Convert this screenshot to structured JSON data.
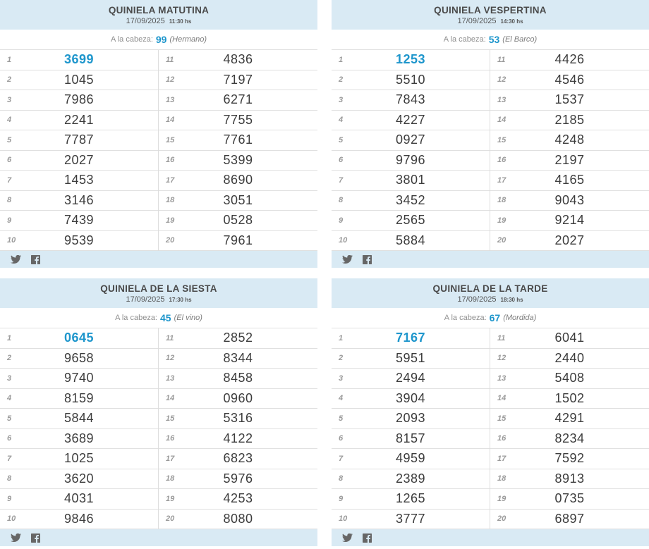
{
  "page": {
    "background": "#ffffff"
  },
  "colors": {
    "accent": "#1e96cc",
    "panel_header_bg": "#d9eaf4",
    "row_border": "#e0e0e0",
    "value_text": "#3c3c3c",
    "muted_text": "#8f8f8f",
    "icon_gray": "#666666"
  },
  "positions": [
    "1",
    "2",
    "3",
    "4",
    "5",
    "6",
    "7",
    "8",
    "9",
    "10",
    "11",
    "12",
    "13",
    "14",
    "15",
    "16",
    "17",
    "18",
    "19",
    "20"
  ],
  "panels": [
    {
      "title": "QUINIELA MATUTINA",
      "date": "17/09/2025",
      "time": "11:30 hs",
      "cabeza_label": "A la cabeza:",
      "cabeza_number": "99",
      "cabeza_name": "(Hermano)",
      "values": [
        "3699",
        "1045",
        "7986",
        "2241",
        "7787",
        "2027",
        "1453",
        "3146",
        "7439",
        "9539",
        "4836",
        "7197",
        "6271",
        "7755",
        "7761",
        "5399",
        "8690",
        "3051",
        "0528",
        "7961"
      ]
    },
    {
      "title": "QUINIELA VESPERTINA",
      "date": "17/09/2025",
      "time": "14:30 hs",
      "cabeza_label": "A la cabeza:",
      "cabeza_number": "53",
      "cabeza_name": "(El Barco)",
      "values": [
        "1253",
        "5510",
        "7843",
        "4227",
        "0927",
        "9796",
        "3801",
        "3452",
        "2565",
        "5884",
        "4426",
        "4546",
        "1537",
        "2185",
        "4248",
        "2197",
        "4165",
        "9043",
        "9214",
        "2027"
      ]
    },
    {
      "title": "QUINIELA DE LA SIESTA",
      "date": "17/09/2025",
      "time": "17:30 hs",
      "cabeza_label": "A la cabeza:",
      "cabeza_number": "45",
      "cabeza_name": "(El vino)",
      "values": [
        "0645",
        "9658",
        "9740",
        "8159",
        "5844",
        "3689",
        "1025",
        "3620",
        "4031",
        "9846",
        "2852",
        "8344",
        "8458",
        "0960",
        "5316",
        "4122",
        "6823",
        "5976",
        "4253",
        "8080"
      ]
    },
    {
      "title": "QUINIELA DE LA TARDE",
      "date": "17/09/2025",
      "time": "18:30 hs",
      "cabeza_label": "A la cabeza:",
      "cabeza_number": "67",
      "cabeza_name": "(Mordida)",
      "values": [
        "7167",
        "5951",
        "2494",
        "3904",
        "2093",
        "8157",
        "4959",
        "2389",
        "1265",
        "3777",
        "6041",
        "2440",
        "5408",
        "1502",
        "4291",
        "8234",
        "7592",
        "8913",
        "0735",
        "6897"
      ]
    }
  ],
  "icons": {
    "twitter": "twitter-icon",
    "facebook": "facebook-icon"
  }
}
